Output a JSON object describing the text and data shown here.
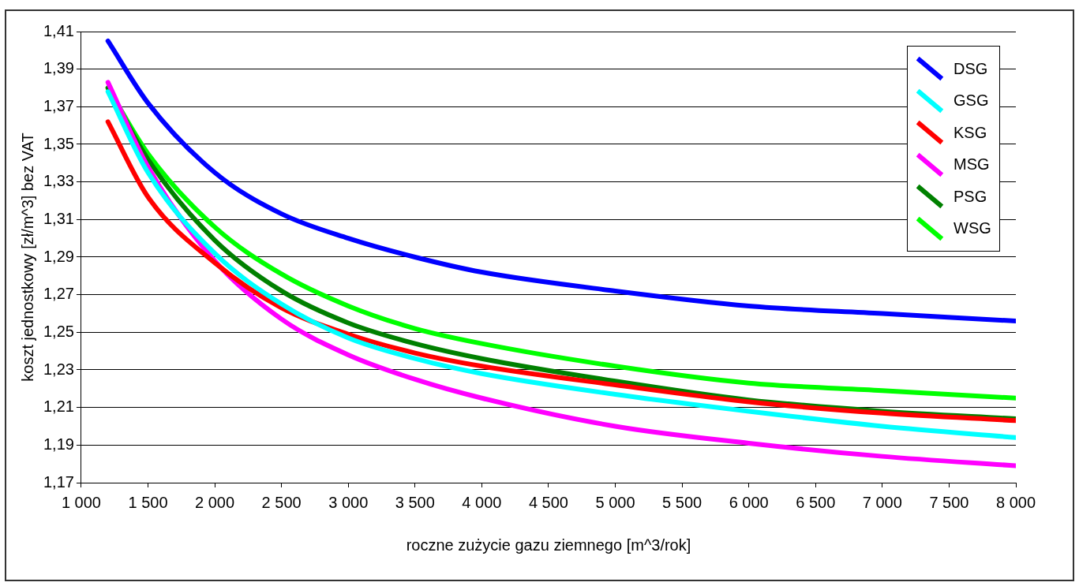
{
  "chart_data": {
    "type": "line",
    "xlabel": "roczne zużycie gazu ziemnego [m^3/rok]",
    "ylabel": "koszt jednostkowy [zł/m^3] bez VAT",
    "x": [
      1200,
      1500,
      2000,
      2500,
      3000,
      3500,
      4000,
      5000,
      6000,
      7000,
      8000
    ],
    "series": [
      {
        "name": "DSG",
        "color": "#0000ff",
        "values": [
          1.405,
          1.372,
          1.335,
          1.313,
          1.3,
          1.29,
          1.282,
          1.272,
          1.264,
          1.26,
          1.256
        ]
      },
      {
        "name": "GSG",
        "color": "#00ffff",
        "values": [
          1.378,
          1.335,
          1.292,
          1.265,
          1.247,
          1.236,
          1.228,
          1.217,
          1.208,
          1.2,
          1.194
        ]
      },
      {
        "name": "KSG",
        "color": "#ff0000",
        "values": [
          1.362,
          1.322,
          1.287,
          1.263,
          1.249,
          1.239,
          1.232,
          1.222,
          1.213,
          1.207,
          1.203
        ]
      },
      {
        "name": "MSG",
        "color": "#ff00ff",
        "values": [
          1.383,
          1.338,
          1.288,
          1.257,
          1.238,
          1.225,
          1.215,
          1.2,
          1.191,
          1.184,
          1.179
        ]
      },
      {
        "name": "PSG",
        "color": "#008000",
        "values": [
          1.38,
          1.342,
          1.299,
          1.272,
          1.255,
          1.244,
          1.236,
          1.224,
          1.214,
          1.208,
          1.204
        ]
      },
      {
        "name": "WSG",
        "color": "#00ff00",
        "values": [
          1.38,
          1.345,
          1.306,
          1.281,
          1.264,
          1.252,
          1.244,
          1.232,
          1.223,
          1.219,
          1.215
        ]
      }
    ],
    "xlim": [
      1000,
      8000
    ],
    "xticks": [
      {
        "value": 1000,
        "label": "1 000"
      },
      {
        "value": 1500,
        "label": "1 500"
      },
      {
        "value": 2000,
        "label": "2 000"
      },
      {
        "value": 2500,
        "label": "2 500"
      },
      {
        "value": 3000,
        "label": "3 000"
      },
      {
        "value": 3500,
        "label": "3 500"
      },
      {
        "value": 4000,
        "label": "4 000"
      },
      {
        "value": 4500,
        "label": "4 500"
      },
      {
        "value": 5000,
        "label": "5 000"
      },
      {
        "value": 5500,
        "label": "5 500"
      },
      {
        "value": 6000,
        "label": "6 000"
      },
      {
        "value": 6500,
        "label": "6 500"
      },
      {
        "value": 7000,
        "label": "7 000"
      },
      {
        "value": 7500,
        "label": "7 500"
      },
      {
        "value": 8000,
        "label": "8 000"
      }
    ],
    "ylim": [
      1.17,
      1.41
    ],
    "yticks": [
      {
        "value": 1.17,
        "label": "1,17"
      },
      {
        "value": 1.19,
        "label": "1,19"
      },
      {
        "value": 1.21,
        "label": "1,21"
      },
      {
        "value": 1.23,
        "label": "1,23"
      },
      {
        "value": 1.25,
        "label": "1,25"
      },
      {
        "value": 1.27,
        "label": "1,27"
      },
      {
        "value": 1.29,
        "label": "1,29"
      },
      {
        "value": 1.31,
        "label": "1,31"
      },
      {
        "value": 1.33,
        "label": "1,33"
      },
      {
        "value": 1.35,
        "label": "1,35"
      },
      {
        "value": 1.37,
        "label": "1,37"
      },
      {
        "value": 1.39,
        "label": "1,39"
      },
      {
        "value": 1.41,
        "label": "1,41"
      }
    ],
    "grid": "y",
    "legend": "top right",
    "marker": "none",
    "line_style": "solid"
  }
}
